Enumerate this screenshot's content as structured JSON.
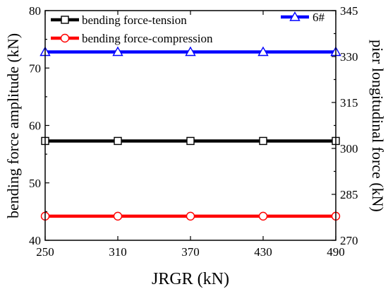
{
  "chart_data": {
    "type": "line",
    "xlabel": "JRGR (kN)",
    "ylabel_left": "bending force amplitude (kN)",
    "ylabel_right": "pier longitudinal force (kN)",
    "x": [
      250,
      310,
      370,
      430,
      490
    ],
    "xlim": [
      250,
      490
    ],
    "xticks": [
      "250",
      "310",
      "370",
      "430",
      "490"
    ],
    "ylim_left": [
      40,
      80
    ],
    "yticks_left": [
      "40",
      "50",
      "60",
      "70",
      "80"
    ],
    "ylim_right": [
      270,
      345
    ],
    "yticks_right": [
      "270",
      "285",
      "300",
      "315",
      "330",
      "345"
    ],
    "series": [
      {
        "name": "bending force-tension",
        "axis": "left",
        "marker": "square",
        "color": "#000000",
        "values": [
          57.3,
          57.3,
          57.3,
          57.3,
          57.3
        ]
      },
      {
        "name": "bending force-compression",
        "axis": "left",
        "marker": "circle",
        "color": "#ff0000",
        "values": [
          44.2,
          44.2,
          44.2,
          44.2,
          44.2
        ]
      },
      {
        "name": "6#",
        "axis": "right",
        "marker": "triangle",
        "color": "#0000ff",
        "values": [
          331.5,
          331.5,
          331.5,
          331.5,
          331.5
        ]
      }
    ],
    "legend_placement": "top"
  }
}
